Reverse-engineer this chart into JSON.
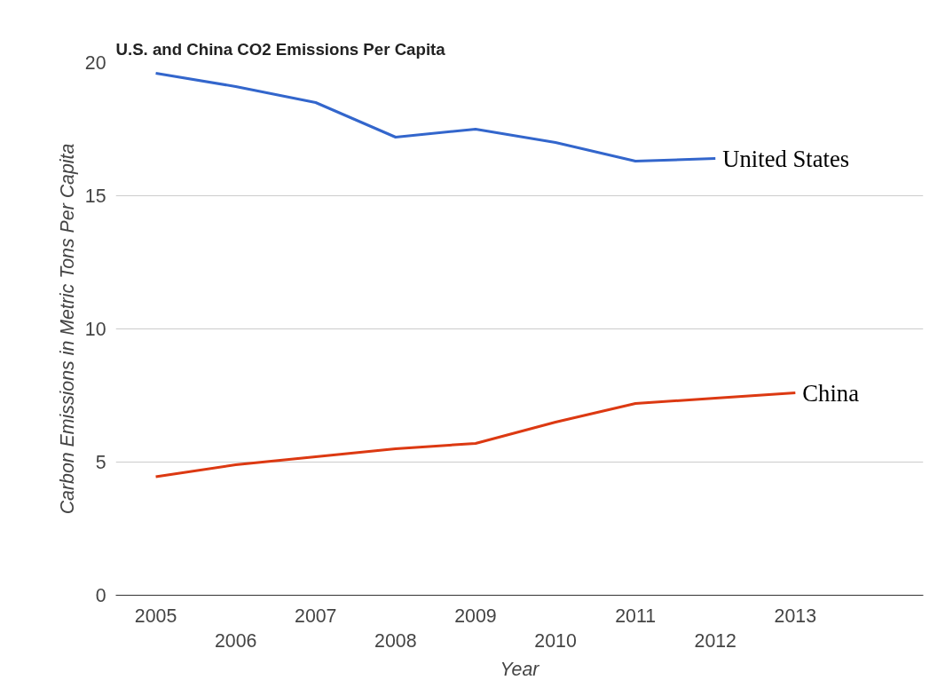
{
  "chart_data": {
    "type": "line",
    "title": "U.S. and China CO2 Emissions Per Capita",
    "xlabel": "Year",
    "ylabel": "Carbon Emissions in Metric Tons Per Capita",
    "categories": [
      "2005",
      "2006",
      "2007",
      "2008",
      "2009",
      "2010",
      "2011",
      "2012",
      "2013"
    ],
    "series": [
      {
        "name": "United States",
        "color": "#3366cc",
        "values": [
          19.6,
          19.1,
          18.5,
          17.2,
          17.5,
          17.0,
          16.3,
          16.4,
          null
        ]
      },
      {
        "name": "China",
        "color": "#dc3912",
        "values": [
          4.45,
          4.9,
          5.2,
          5.5,
          5.7,
          6.5,
          7.2,
          7.4,
          7.6
        ]
      }
    ],
    "ylim": [
      0,
      20
    ],
    "yticks": [
      0,
      5,
      10,
      15,
      20
    ],
    "grid": "y",
    "marker": "none",
    "line_style": "solid"
  }
}
